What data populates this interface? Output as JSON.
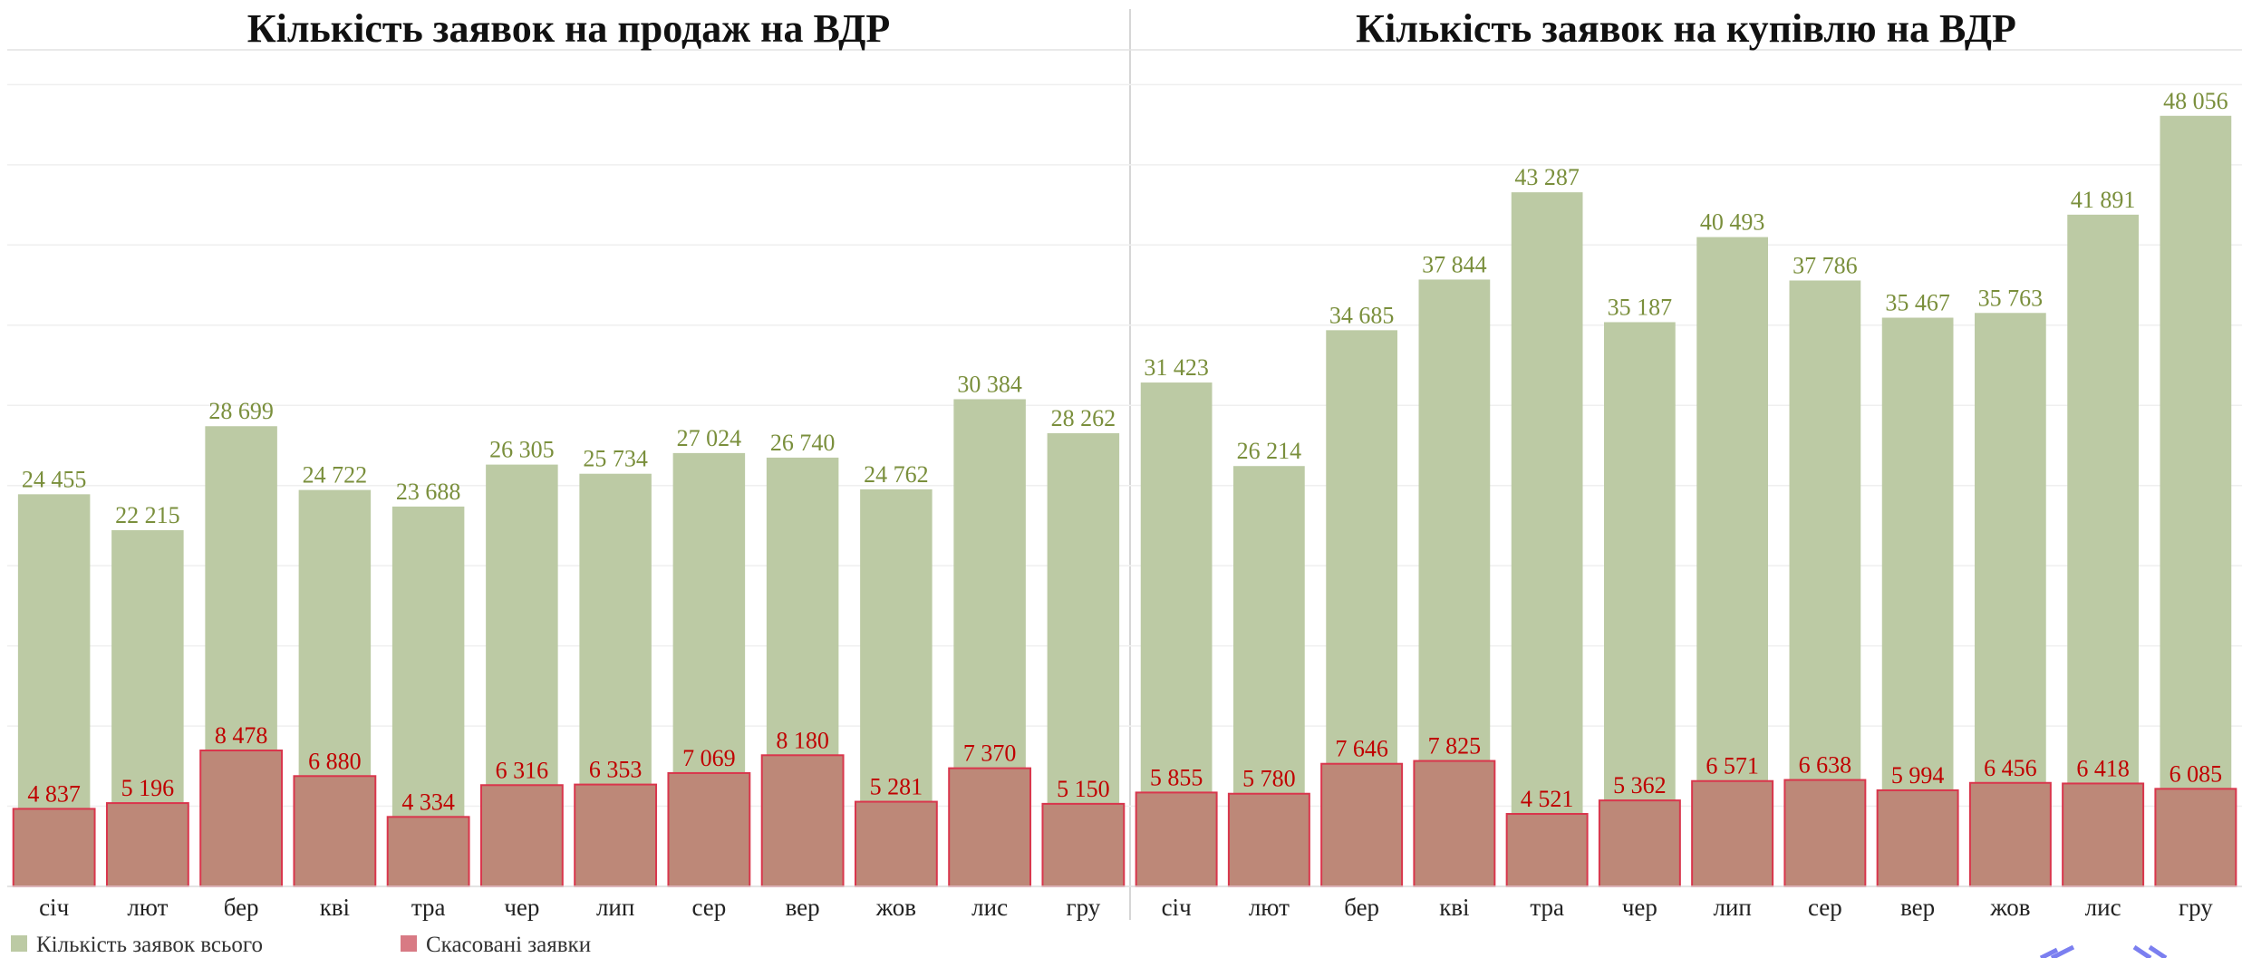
{
  "chart_data": [
    {
      "type": "bar",
      "title": "Кількість заявок на продаж на ВДР",
      "categories": [
        "січ",
        "лют",
        "бер",
        "кві",
        "тра",
        "чер",
        "лип",
        "сер",
        "вер",
        "жов",
        "лис",
        "гру"
      ],
      "ylim": [
        0,
        52000
      ],
      "yticks": [
        0,
        5000,
        10000,
        15000,
        20000,
        25000,
        30000,
        35000,
        40000,
        45000,
        50000
      ],
      "grid": true,
      "series": [
        {
          "name": "Кількість заявок всього",
          "color": "#bccaa4",
          "values": [
            24455,
            22215,
            28699,
            24722,
            23688,
            26305,
            25734,
            27024,
            26740,
            24762,
            30384,
            28262
          ],
          "value_labels": [
            "24 455",
            "22 215",
            "28 699",
            "24 722",
            "23 688",
            "26 305",
            "25 734",
            "27 024",
            "26 740",
            "24 762",
            "30 384",
            "28 262"
          ]
        },
        {
          "name": "Скасовані заявки",
          "color": "#bd8878",
          "values": [
            4837,
            5196,
            8478,
            6880,
            4334,
            6316,
            6353,
            7069,
            8180,
            5281,
            7370,
            5150
          ],
          "value_labels": [
            "4 837",
            "5 196",
            "8 478",
            "6 880",
            "4 334",
            "6 316",
            "6 353",
            "7 069",
            "8 180",
            "5 281",
            "7 370",
            "5 150"
          ]
        }
      ]
    },
    {
      "type": "bar",
      "title": "Кількість заявок на купівлю на ВДР",
      "categories": [
        "січ",
        "лют",
        "бер",
        "кві",
        "тра",
        "чер",
        "лип",
        "сер",
        "вер",
        "жов",
        "лис",
        "гру"
      ],
      "ylim": [
        0,
        52000
      ],
      "yticks": [
        0,
        5000,
        10000,
        15000,
        20000,
        25000,
        30000,
        35000,
        40000,
        45000,
        50000
      ],
      "grid": true,
      "series": [
        {
          "color": "#bccaa4",
          "values": [
            31423,
            26214,
            34685,
            37844,
            43287,
            35187,
            40493,
            37786,
            35467,
            35763,
            41891,
            48056
          ],
          "value_labels": [
            "31 423",
            "26 214",
            "34 685",
            "37 844",
            "43 287",
            "35 187",
            "40 493",
            "37 786",
            "35 467",
            "35 763",
            "41 891",
            "48 056"
          ]
        },
        {
          "color": "#bd8878",
          "values": [
            5855,
            5780,
            7646,
            7825,
            4521,
            5362,
            6571,
            6638,
            5994,
            6456,
            6418,
            6085
          ],
          "value_labels": [
            "5 855",
            "5 780",
            "7 646",
            "7 825",
            "4 521",
            "5 362",
            "6 571",
            "6 638",
            "5 994",
            "6 456",
            "6 418",
            "6 085"
          ]
        }
      ]
    }
  ]
}
